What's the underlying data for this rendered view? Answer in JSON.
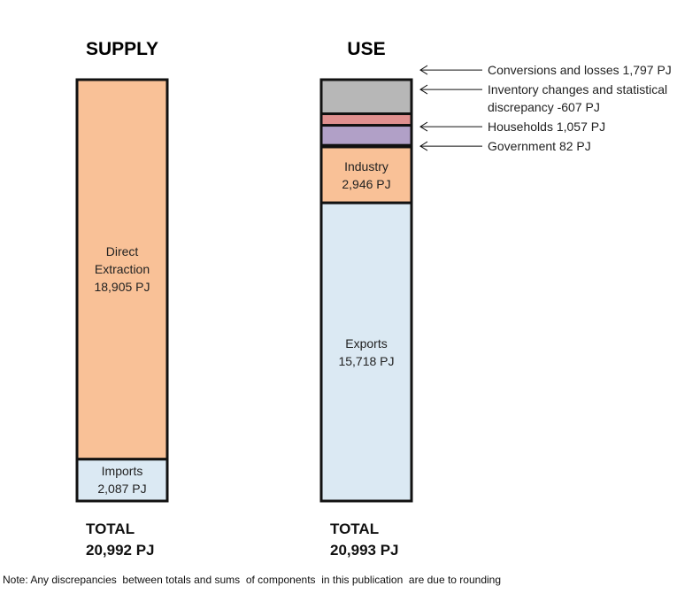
{
  "chart_data": [
    {
      "type": "stacked-bar",
      "title": "SUPPLY",
      "categories": [
        "Imports",
        "Direct Extraction"
      ],
      "values": [
        2087,
        18905
      ],
      "value_labels": [
        "2,087 PJ",
        "18,905 PJ"
      ],
      "colors": [
        "#dbe9f3",
        "#f9c197"
      ],
      "total_label": "TOTAL",
      "total_value_label": "20,992 PJ"
    },
    {
      "type": "stacked-bar",
      "title": "USE",
      "categories": [
        "Exports",
        "Industry",
        "Government",
        "Households",
        "Inventory changes and statistical discrepancy",
        "Conversions and losses"
      ],
      "values": [
        15718,
        2946,
        82,
        1057,
        -607,
        1797
      ],
      "value_labels": [
        "15,718 PJ",
        "2,946 PJ",
        "82 PJ",
        "1,057 PJ",
        "-607 PJ",
        "1,797 PJ"
      ],
      "colors": [
        "#dbe9f3",
        "#f9c197",
        "#f9c197",
        "#b1a0c7",
        "#e0908f",
        "#b7b7b7"
      ],
      "total_label": "TOTAL",
      "total_value_label": "20,993 PJ"
    }
  ],
  "note": "Note: Any discrepancies  between totals and sums  of components  in this publication  are due to rounding"
}
